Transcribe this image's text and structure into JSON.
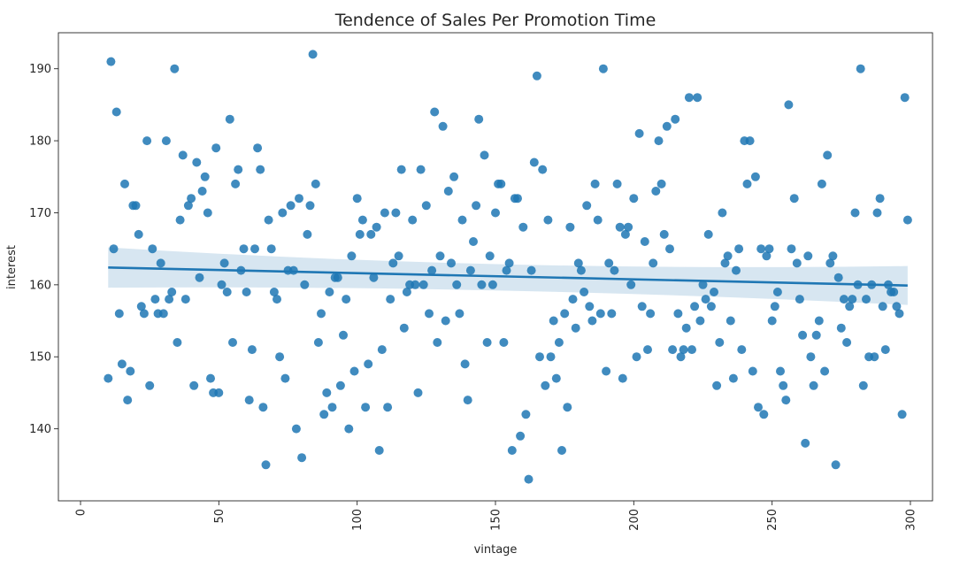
{
  "chart_data": {
    "type": "scatter",
    "title": "Tendence of Sales Per Promotion Time",
    "xlabel": "vintage",
    "ylabel": "interest",
    "xlim": [
      -8,
      308
    ],
    "ylim": [
      130,
      195
    ],
    "xticks": [
      0,
      50,
      100,
      150,
      200,
      250,
      300
    ],
    "yticks": [
      140,
      150,
      160,
      170,
      180,
      190
    ],
    "grid": false,
    "point_color": "#1f77b4",
    "regression": {
      "start": [
        10,
        162.4
      ],
      "end": [
        299,
        159.9
      ],
      "ci_low_start": 159.6,
      "ci_high_start": 165.2,
      "ci_low_mid": 160.0,
      "ci_high_mid": 161.8,
      "ci_low_end": 157.2,
      "ci_high_end": 162.6,
      "ci_mid_x": 150
    },
    "points": [
      [
        10,
        147
      ],
      [
        11,
        191
      ],
      [
        12,
        165
      ],
      [
        13,
        184
      ],
      [
        14,
        156
      ],
      [
        15,
        149
      ],
      [
        16,
        174
      ],
      [
        17,
        144
      ],
      [
        18,
        148
      ],
      [
        19,
        171
      ],
      [
        20,
        171
      ],
      [
        21,
        167
      ],
      [
        22,
        157
      ],
      [
        23,
        156
      ],
      [
        24,
        180
      ],
      [
        25,
        146
      ],
      [
        26,
        165
      ],
      [
        27,
        158
      ],
      [
        28,
        156
      ],
      [
        29,
        163
      ],
      [
        30,
        156
      ],
      [
        31,
        180
      ],
      [
        32,
        158
      ],
      [
        33,
        159
      ],
      [
        34,
        190
      ],
      [
        35,
        152
      ],
      [
        36,
        169
      ],
      [
        37,
        178
      ],
      [
        38,
        158
      ],
      [
        39,
        171
      ],
      [
        40,
        172
      ],
      [
        41,
        146
      ],
      [
        42,
        177
      ],
      [
        43,
        161
      ],
      [
        44,
        173
      ],
      [
        45,
        175
      ],
      [
        46,
        170
      ],
      [
        47,
        147
      ],
      [
        48,
        145
      ],
      [
        49,
        179
      ],
      [
        50,
        145
      ],
      [
        51,
        160
      ],
      [
        52,
        163
      ],
      [
        53,
        159
      ],
      [
        54,
        183
      ],
      [
        55,
        152
      ],
      [
        56,
        174
      ],
      [
        57,
        176
      ],
      [
        58,
        162
      ],
      [
        59,
        165
      ],
      [
        60,
        159
      ],
      [
        61,
        144
      ],
      [
        62,
        151
      ],
      [
        63,
        165
      ],
      [
        64,
        179
      ],
      [
        65,
        176
      ],
      [
        66,
        143
      ],
      [
        67,
        135
      ],
      [
        68,
        169
      ],
      [
        69,
        165
      ],
      [
        70,
        159
      ],
      [
        71,
        158
      ],
      [
        72,
        150
      ],
      [
        73,
        170
      ],
      [
        74,
        147
      ],
      [
        75,
        162
      ],
      [
        76,
        171
      ],
      [
        77,
        162
      ],
      [
        78,
        140
      ],
      [
        79,
        172
      ],
      [
        80,
        136
      ],
      [
        81,
        160
      ],
      [
        82,
        167
      ],
      [
        83,
        171
      ],
      [
        84,
        192
      ],
      [
        85,
        174
      ],
      [
        86,
        152
      ],
      [
        87,
        156
      ],
      [
        88,
        142
      ],
      [
        89,
        145
      ],
      [
        90,
        159
      ],
      [
        91,
        143
      ],
      [
        92,
        161
      ],
      [
        93,
        161
      ],
      [
        94,
        146
      ],
      [
        95,
        153
      ],
      [
        96,
        158
      ],
      [
        97,
        140
      ],
      [
        98,
        164
      ],
      [
        99,
        148
      ],
      [
        100,
        172
      ],
      [
        101,
        167
      ],
      [
        102,
        169
      ],
      [
        103,
        143
      ],
      [
        104,
        149
      ],
      [
        105,
        167
      ],
      [
        106,
        161
      ],
      [
        107,
        168
      ],
      [
        108,
        137
      ],
      [
        109,
        151
      ],
      [
        110,
        170
      ],
      [
        111,
        143
      ],
      [
        112,
        158
      ],
      [
        113,
        163
      ],
      [
        114,
        170
      ],
      [
        115,
        164
      ],
      [
        116,
        176
      ],
      [
        117,
        154
      ],
      [
        118,
        159
      ],
      [
        119,
        160
      ],
      [
        120,
        169
      ],
      [
        121,
        160
      ],
      [
        122,
        145
      ],
      [
        123,
        176
      ],
      [
        124,
        160
      ],
      [
        125,
        171
      ],
      [
        126,
        156
      ],
      [
        127,
        162
      ],
      [
        128,
        184
      ],
      [
        129,
        152
      ],
      [
        130,
        164
      ],
      [
        131,
        182
      ],
      [
        132,
        155
      ],
      [
        133,
        173
      ],
      [
        134,
        163
      ],
      [
        135,
        175
      ],
      [
        136,
        160
      ],
      [
        137,
        156
      ],
      [
        138,
        169
      ],
      [
        139,
        149
      ],
      [
        140,
        144
      ],
      [
        141,
        162
      ],
      [
        142,
        166
      ],
      [
        143,
        171
      ],
      [
        144,
        183
      ],
      [
        145,
        160
      ],
      [
        146,
        178
      ],
      [
        147,
        152
      ],
      [
        148,
        164
      ],
      [
        149,
        160
      ],
      [
        150,
        170
      ],
      [
        151,
        174
      ],
      [
        152,
        174
      ],
      [
        153,
        152
      ],
      [
        154,
        162
      ],
      [
        155,
        163
      ],
      [
        156,
        137
      ],
      [
        157,
        172
      ],
      [
        158,
        172
      ],
      [
        159,
        139
      ],
      [
        160,
        168
      ],
      [
        161,
        142
      ],
      [
        162,
        133
      ],
      [
        163,
        162
      ],
      [
        164,
        177
      ],
      [
        165,
        189
      ],
      [
        166,
        150
      ],
      [
        167,
        176
      ],
      [
        168,
        146
      ],
      [
        169,
        169
      ],
      [
        170,
        150
      ],
      [
        171,
        155
      ],
      [
        172,
        147
      ],
      [
        173,
        152
      ],
      [
        174,
        137
      ],
      [
        175,
        156
      ],
      [
        176,
        143
      ],
      [
        177,
        168
      ],
      [
        178,
        158
      ],
      [
        179,
        154
      ],
      [
        180,
        163
      ],
      [
        181,
        162
      ],
      [
        182,
        159
      ],
      [
        183,
        171
      ],
      [
        184,
        157
      ],
      [
        185,
        155
      ],
      [
        186,
        174
      ],
      [
        187,
        169
      ],
      [
        188,
        156
      ],
      [
        189,
        190
      ],
      [
        190,
        148
      ],
      [
        191,
        163
      ],
      [
        192,
        156
      ],
      [
        193,
        162
      ],
      [
        194,
        174
      ],
      [
        195,
        168
      ],
      [
        196,
        147
      ],
      [
        197,
        167
      ],
      [
        198,
        168
      ],
      [
        199,
        160
      ],
      [
        200,
        172
      ],
      [
        201,
        150
      ],
      [
        202,
        181
      ],
      [
        203,
        157
      ],
      [
        204,
        166
      ],
      [
        205,
        151
      ],
      [
        206,
        156
      ],
      [
        207,
        163
      ],
      [
        208,
        173
      ],
      [
        209,
        180
      ],
      [
        210,
        174
      ],
      [
        211,
        167
      ],
      [
        212,
        182
      ],
      [
        213,
        165
      ],
      [
        214,
        151
      ],
      [
        215,
        183
      ],
      [
        216,
        156
      ],
      [
        217,
        150
      ],
      [
        218,
        151
      ],
      [
        219,
        154
      ],
      [
        220,
        186
      ],
      [
        221,
        151
      ],
      [
        222,
        157
      ],
      [
        223,
        186
      ],
      [
        224,
        155
      ],
      [
        225,
        160
      ],
      [
        226,
        158
      ],
      [
        227,
        167
      ],
      [
        228,
        157
      ],
      [
        229,
        159
      ],
      [
        230,
        146
      ],
      [
        231,
        152
      ],
      [
        232,
        170
      ],
      [
        233,
        163
      ],
      [
        234,
        164
      ],
      [
        235,
        155
      ],
      [
        236,
        147
      ],
      [
        237,
        162
      ],
      [
        238,
        165
      ],
      [
        239,
        151
      ],
      [
        240,
        180
      ],
      [
        241,
        174
      ],
      [
        242,
        180
      ],
      [
        243,
        148
      ],
      [
        244,
        175
      ],
      [
        245,
        143
      ],
      [
        246,
        165
      ],
      [
        247,
        142
      ],
      [
        248,
        164
      ],
      [
        249,
        165
      ],
      [
        250,
        155
      ],
      [
        251,
        157
      ],
      [
        252,
        159
      ],
      [
        253,
        148
      ],
      [
        254,
        146
      ],
      [
        255,
        144
      ],
      [
        256,
        185
      ],
      [
        257,
        165
      ],
      [
        258,
        172
      ],
      [
        259,
        163
      ],
      [
        260,
        158
      ],
      [
        261,
        153
      ],
      [
        262,
        138
      ],
      [
        263,
        164
      ],
      [
        264,
        150
      ],
      [
        265,
        146
      ],
      [
        266,
        153
      ],
      [
        267,
        155
      ],
      [
        268,
        174
      ],
      [
        269,
        148
      ],
      [
        270,
        178
      ],
      [
        271,
        163
      ],
      [
        272,
        164
      ],
      [
        273,
        135
      ],
      [
        274,
        161
      ],
      [
        275,
        154
      ],
      [
        276,
        158
      ],
      [
        277,
        152
      ],
      [
        278,
        157
      ],
      [
        279,
        158
      ],
      [
        280,
        170
      ],
      [
        281,
        160
      ],
      [
        282,
        190
      ],
      [
        283,
        146
      ],
      [
        284,
        158
      ],
      [
        285,
        150
      ],
      [
        286,
        160
      ],
      [
        287,
        150
      ],
      [
        288,
        170
      ],
      [
        289,
        172
      ],
      [
        290,
        157
      ],
      [
        291,
        151
      ],
      [
        292,
        160
      ],
      [
        293,
        159
      ],
      [
        294,
        159
      ],
      [
        295,
        157
      ],
      [
        296,
        156
      ],
      [
        297,
        142
      ],
      [
        298,
        186
      ],
      [
        299,
        169
      ]
    ]
  }
}
